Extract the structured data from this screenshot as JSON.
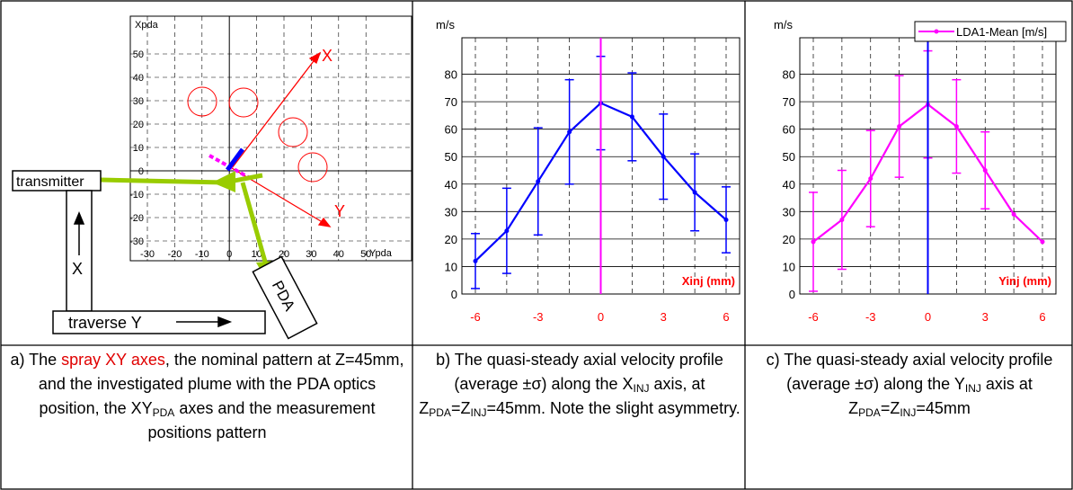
{
  "colors": {
    "red": "#ff0000",
    "blue": "#0000ff",
    "magenta": "#ff00ff",
    "green": "#99cc00",
    "redtick": "#ff0000"
  },
  "diagram": {
    "y_axis_label": "Xpda",
    "x_axis_label": "Ypda",
    "y_ticks": [
      "50",
      "40",
      "30",
      "20",
      "10",
      "0",
      "-10",
      "-20",
      "-30"
    ],
    "x_ticks": [
      "-30",
      "-20",
      "-10",
      "0",
      "10",
      "20",
      "30",
      "40",
      "50"
    ],
    "spray_x_label": "X",
    "spray_y_label": "Y",
    "transmitter_label": "transmitter",
    "pda_label": "PDA",
    "traverse_x_label": "X",
    "traverse_y_label": "traverse Y"
  },
  "chart_data": [
    {
      "type": "line",
      "ylabel": "m/s",
      "xlabel": "Xinj (mm)",
      "x_tick_labels": [
        "-6",
        "-3",
        "0",
        "3",
        "6"
      ],
      "y_tick_labels": [
        "0",
        "10",
        "20",
        "30",
        "40",
        "50",
        "60",
        "70",
        "80"
      ],
      "xlim": [
        -6,
        6
      ],
      "ylim": [
        0,
        90
      ],
      "grid": true,
      "series": [
        {
          "x": [
            -6,
            -4.5,
            -3,
            -1.5,
            0,
            1.5,
            3,
            4.5,
            6
          ],
          "values": [
            12,
            23,
            41,
            59,
            69.5,
            64.5,
            50,
            37,
            27
          ],
          "err": [
            10,
            15.5,
            19.5,
            19,
            17,
            16,
            15.5,
            14,
            12
          ]
        }
      ]
    },
    {
      "type": "line",
      "ylabel": "m/s",
      "xlabel": "Yinj (mm)",
      "legend": "LDA1-Mean [m/s]",
      "legend_position": "top-right",
      "x_tick_labels": [
        "-6",
        "-3",
        "0",
        "3",
        "6"
      ],
      "y_tick_labels": [
        "0",
        "10",
        "20",
        "30",
        "40",
        "50",
        "60",
        "70",
        "80"
      ],
      "xlim": [
        -6,
        6
      ],
      "ylim": [
        0,
        90
      ],
      "grid": true,
      "series": [
        {
          "name": "LDA1-Mean [m/s]",
          "x": [
            -6,
            -4.5,
            -3,
            -1.5,
            0,
            1.5,
            3,
            4.5,
            6
          ],
          "values": [
            19,
            27,
            42,
            61,
            69,
            61,
            45,
            29,
            19
          ],
          "err": [
            18,
            18,
            17.5,
            18.5,
            19.5,
            17,
            14,
            0,
            0
          ]
        }
      ]
    }
  ],
  "captions": {
    "a_pre": "a) The ",
    "a_red": "spray XY axes",
    "a_post": ", the nominal pattern at Z=45mm, and the investigated plume with the PDA optics position, the XY",
    "a_sub": "PDA",
    "a_end": " axes and the measurement positions pattern",
    "b1": "b) The quasi-steady axial velocity profile (average ±σ) along the X",
    "b_sub1": "INJ",
    "b2": " axis, at Z",
    "b_sub2": "PDA",
    "b3": "=Z",
    "b_sub3": "INJ",
    "b4": "=45mm. Note the slight asymmetry.",
    "c1": "c) The quasi-steady axial velocity profile (average ±σ) along the Y",
    "c_sub1": "INJ",
    "c2": " axis at Z",
    "c_sub2": "PDA",
    "c3": "=Z",
    "c_sub3": "INJ",
    "c4": "=45mm"
  }
}
